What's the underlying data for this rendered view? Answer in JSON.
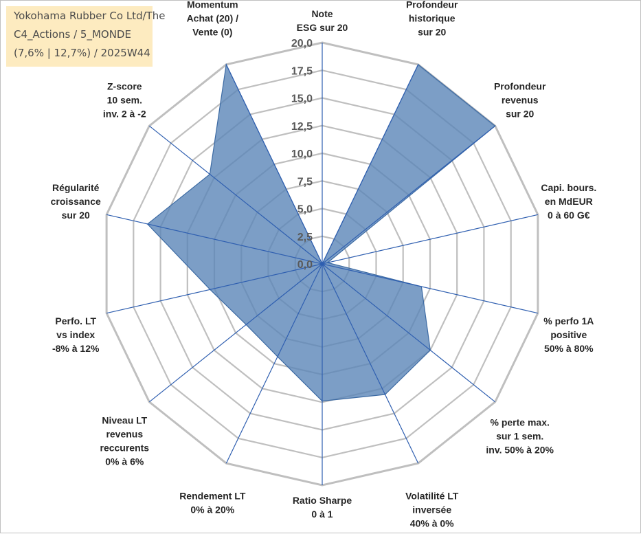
{
  "title_lines": [
    "Yokohama Rubber Co Ltd/The",
    "C4_Actions / 5_MONDE",
    "(7,6% | 12,7%) / 2025W44"
  ],
  "colors": {
    "fill": "#5b86b8",
    "stroke": "#3c6aa3",
    "grid": "#bfbfbf",
    "spoke": "#2f5fb0",
    "text": "#262626",
    "title_bg": "#fde9b8"
  },
  "chart_data": {
    "type": "radar",
    "rlim": [
      0,
      20
    ],
    "tick_labels": [
      "0,0",
      "2,5",
      "5,0",
      "7,5",
      "10,0",
      "12,5",
      "15,0",
      "17,5",
      "20,0"
    ],
    "categories": [
      [
        "Note",
        "ESG sur 20"
      ],
      [
        "Profondeur",
        "historique",
        "sur 20"
      ],
      [
        "Profondeur",
        "revenus",
        "sur 20"
      ],
      [
        "Capi. bours.",
        "en MdEUR",
        "0 à 60 G€"
      ],
      [
        "% perfo 1A",
        "positive",
        "50% à 80%"
      ],
      [
        "% perte max.",
        "sur 1 sem.",
        "inv. 50% à 20%"
      ],
      [
        "Volatilité LT",
        "inversée",
        "40% à 0%"
      ],
      [
        "Ratio Sharpe",
        "0 à 1"
      ],
      [
        "Rendement LT",
        "0% à 20%"
      ],
      [
        "Niveau LT",
        "revenus",
        "reccurents",
        "0% à 6%"
      ],
      [
        "Perfo. LT",
        "vs index",
        "-8% à 12%"
      ],
      [
        "Régularité",
        "croissance",
        "sur 20"
      ],
      [
        "Z-score",
        "10 sem.",
        "inv. 2 à -2"
      ],
      [
        "Momentum",
        "Achat (20) /",
        "Vente (0)"
      ]
    ],
    "values": [
      0,
      20,
      20,
      0.5,
      9.2,
      12.5,
      13.1,
      12.4,
      9.3,
      8.8,
      10.4,
      16.2,
      13.0,
      20
    ]
  }
}
